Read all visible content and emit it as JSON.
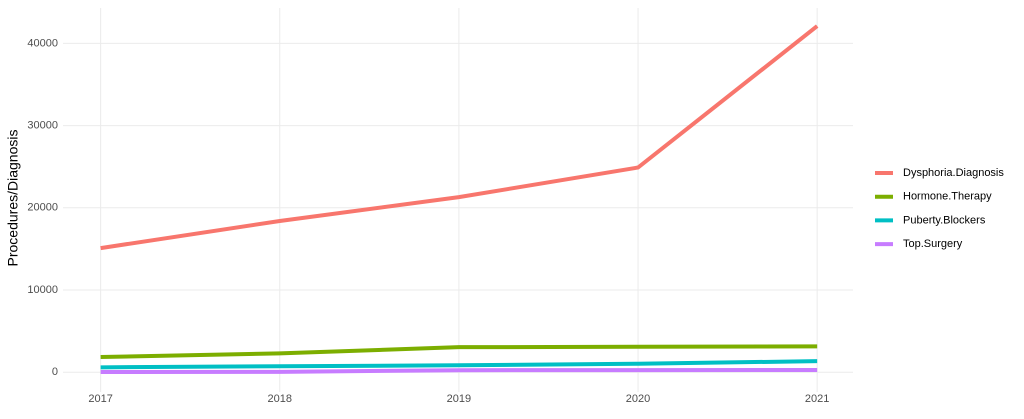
{
  "chart_data": {
    "type": "line",
    "y_label": "Procedures/Diagnosis",
    "x": [
      2017,
      2018,
      2019,
      2020,
      2021
    ],
    "xlim": [
      2016.79,
      2021.2
    ],
    "xticks": [
      2017,
      2018,
      2019,
      2020,
      2021
    ],
    "ylim": [
      -2400,
      44300
    ],
    "yticks": [
      0,
      10000,
      20000,
      30000,
      40000
    ],
    "grid": true,
    "legend": "right",
    "series": [
      {
        "name": "Dysphoria.Diagnosis",
        "color": "#f8766d",
        "values": [
          15100,
          18400,
          21300,
          24900,
          42100
        ]
      },
      {
        "name": "Hormone.Therapy",
        "color": "#7cae00",
        "values": [
          1850,
          2300,
          3050,
          3100,
          3150
        ]
      },
      {
        "name": "Puberty.Blockers",
        "color": "#00bfc4",
        "values": [
          600,
          730,
          850,
          1040,
          1350
        ]
      },
      {
        "name": "Top.Surgery",
        "color": "#c77cff",
        "values": [
          30,
          50,
          250,
          260,
          280
        ]
      }
    ]
  }
}
